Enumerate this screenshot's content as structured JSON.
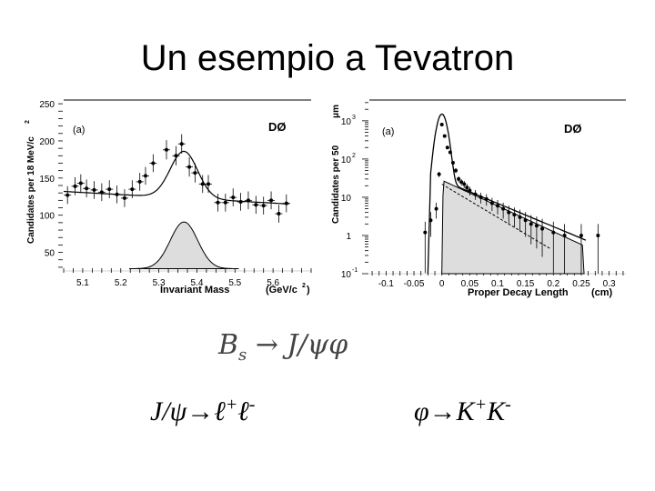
{
  "slide": {
    "title": "Un esempio a Tevatron",
    "formula_main": {
      "lhs": "B",
      "lhs_sub": "s",
      "arrow": "→",
      "rhs": "J/ψφ"
    },
    "formula_jpsi": {
      "base": "J/ψ→ℓ",
      "sup1": "+",
      "mid": "ℓ",
      "sup2": "-"
    },
    "formula_phi": {
      "base": "φ→K",
      "sup1": "+",
      "mid": "K",
      "sup2": "-"
    }
  },
  "chart_data": [
    {
      "type": "scatter",
      "panel": "(a)",
      "experiment": "DØ",
      "xlabel": "Invariant Mass",
      "xunit": "(GeV/c",
      "xunit_sup": "2",
      "xunit_close": ")",
      "ylabel": "Candidates per 18 MeV/c",
      "ylabel_sup": "2",
      "xlim": [
        5.05,
        5.7
      ],
      "ylim": [
        25,
        255
      ],
      "xticks": [
        5.1,
        5.2,
        5.3,
        5.4,
        5.5,
        5.6
      ],
      "xtick_labels": [
        "5.1",
        "5.2",
        "5.3",
        "5.4",
        "5.5",
        "5.6"
      ],
      "yticks": [
        50,
        100,
        150,
        200,
        250
      ],
      "ytick_labels": [
        "50",
        "100",
        "150",
        "200",
        "250"
      ],
      "points": [
        {
          "x": 5.06,
          "y": 127,
          "e": 12
        },
        {
          "x": 5.08,
          "y": 139,
          "e": 12
        },
        {
          "x": 5.095,
          "y": 143,
          "e": 12
        },
        {
          "x": 5.11,
          "y": 136,
          "e": 12
        },
        {
          "x": 5.13,
          "y": 134,
          "e": 12
        },
        {
          "x": 5.15,
          "y": 131,
          "e": 12
        },
        {
          "x": 5.17,
          "y": 135,
          "e": 12
        },
        {
          "x": 5.19,
          "y": 128,
          "e": 12
        },
        {
          "x": 5.21,
          "y": 123,
          "e": 12
        },
        {
          "x": 5.23,
          "y": 135,
          "e": 12
        },
        {
          "x": 5.25,
          "y": 145,
          "e": 12
        },
        {
          "x": 5.265,
          "y": 153,
          "e": 12
        },
        {
          "x": 5.285,
          "y": 170,
          "e": 12
        },
        {
          "x": 5.32,
          "y": 188,
          "e": 13
        },
        {
          "x": 5.345,
          "y": 180,
          "e": 13
        },
        {
          "x": 5.36,
          "y": 196,
          "e": 13
        },
        {
          "x": 5.38,
          "y": 165,
          "e": 13
        },
        {
          "x": 5.395,
          "y": 157,
          "e": 13
        },
        {
          "x": 5.415,
          "y": 142,
          "e": 12
        },
        {
          "x": 5.43,
          "y": 142,
          "e": 12
        },
        {
          "x": 5.455,
          "y": 117,
          "e": 12
        },
        {
          "x": 5.475,
          "y": 117,
          "e": 12
        },
        {
          "x": 5.495,
          "y": 124,
          "e": 12
        },
        {
          "x": 5.515,
          "y": 118,
          "e": 12
        },
        {
          "x": 5.535,
          "y": 120,
          "e": 12
        },
        {
          "x": 5.555,
          "y": 114,
          "e": 12
        },
        {
          "x": 5.575,
          "y": 113,
          "e": 12
        },
        {
          "x": 5.595,
          "y": 120,
          "e": 12
        },
        {
          "x": 5.615,
          "y": 102,
          "e": 12
        },
        {
          "x": 5.635,
          "y": 116,
          "e": 12
        }
      ],
      "fit": {
        "background_a": 132,
        "background_b": -95,
        "signal_amp": 63,
        "mean": 5.366,
        "sigma": 0.036
      },
      "signal_curve": {
        "amp": 63,
        "mean": 5.366,
        "sigma": 0.036,
        "base": 28
      }
    },
    {
      "type": "scatter",
      "panel": "(a)",
      "experiment": "DØ",
      "xlabel": "Proper Decay Length",
      "xunit": "(cm)",
      "ylabel": "Candidates per 50",
      "ylabel_unit": "μm",
      "yscale": "log",
      "xlim": [
        -0.13,
        0.33
      ],
      "ylim": [
        0.1,
        3500
      ],
      "xticks": [
        -0.1,
        -0.05,
        0,
        0.05,
        0.1,
        0.15,
        0.2,
        0.25,
        0.3
      ],
      "xtick_labels": [
        "-0.1",
        "-0.05",
        "0",
        "0.05",
        "0.1",
        "0.15",
        "0.2",
        "0.25",
        "0.3"
      ],
      "yticks": [
        0.1,
        1,
        10,
        100,
        1000
      ],
      "ytick_labels": [
        {
          "base": "10",
          "exp": "-1"
        },
        {
          "base": "1",
          "exp": ""
        },
        {
          "base": "10",
          "exp": ""
        },
        {
          "base": "10",
          "exp": "2"
        },
        {
          "base": "10",
          "exp": "3"
        }
      ],
      "points": [
        {
          "x": -0.03,
          "y": 1.2
        },
        {
          "x": -0.02,
          "y": 2.5
        },
        {
          "x": -0.01,
          "y": 5
        },
        {
          "x": -0.005,
          "y": 40
        },
        {
          "x": 0.0,
          "y": 800
        },
        {
          "x": 0.005,
          "y": 400
        },
        {
          "x": 0.01,
          "y": 200
        },
        {
          "x": 0.015,
          "y": 150
        },
        {
          "x": 0.02,
          "y": 80
        },
        {
          "x": 0.025,
          "y": 50
        },
        {
          "x": 0.03,
          "y": 30
        },
        {
          "x": 0.035,
          "y": 25
        },
        {
          "x": 0.04,
          "y": 22
        },
        {
          "x": 0.045,
          "y": 18
        },
        {
          "x": 0.05,
          "y": 15
        },
        {
          "x": 0.06,
          "y": 12
        },
        {
          "x": 0.07,
          "y": 10
        },
        {
          "x": 0.08,
          "y": 9
        },
        {
          "x": 0.09,
          "y": 7
        },
        {
          "x": 0.1,
          "y": 6
        },
        {
          "x": 0.11,
          "y": 5
        },
        {
          "x": 0.12,
          "y": 4
        },
        {
          "x": 0.13,
          "y": 3.5
        },
        {
          "x": 0.14,
          "y": 3
        },
        {
          "x": 0.15,
          "y": 2.5
        },
        {
          "x": 0.16,
          "y": 2
        },
        {
          "x": 0.17,
          "y": 1.8
        },
        {
          "x": 0.18,
          "y": 1.5
        },
        {
          "x": 0.2,
          "y": 1.2
        },
        {
          "x": 0.22,
          "y": 1
        },
        {
          "x": 0.25,
          "y": 1
        },
        {
          "x": 0.28,
          "y": 1
        }
      ],
      "total_fit": {
        "peak": 1500,
        "peak_x": 0.0,
        "tail_start": 28,
        "tail_slope": -14
      },
      "signal_curve": {
        "start": 28,
        "slope": -15.5,
        "end_x": 0.255
      },
      "dashed_curve": {
        "start": 22,
        "slope": -20,
        "end_x": 0.2
      }
    }
  ]
}
